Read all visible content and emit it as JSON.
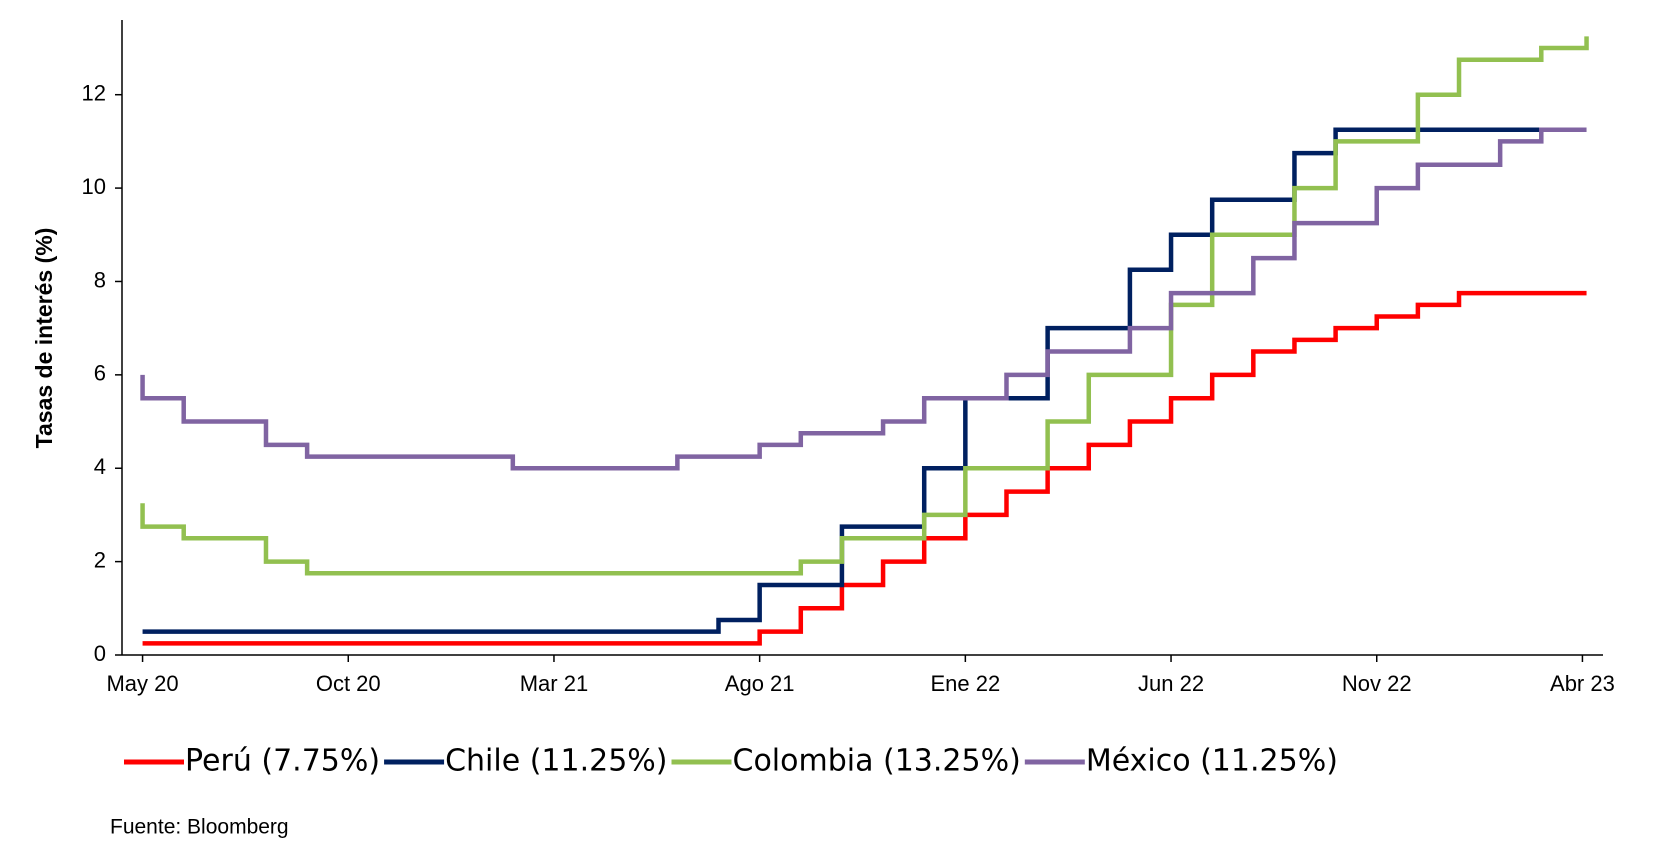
{
  "chart_data": {
    "type": "line",
    "step": true,
    "y_label": "Tasas de interés (%)",
    "source": "Fuente: Bloomberg",
    "xlim": [
      -0.5,
      35.5
    ],
    "xticks": [
      {
        "value": 0,
        "label": "May 20"
      },
      {
        "value": 5,
        "label": "Oct 20"
      },
      {
        "value": 10,
        "label": "Mar 21"
      },
      {
        "value": 15,
        "label": "Ago 21"
      },
      {
        "value": 20,
        "label": "Ene 22"
      },
      {
        "value": 25,
        "label": "Jun 22"
      },
      {
        "value": 30,
        "label": "Nov 22"
      },
      {
        "value": 35,
        "label": "Abr 23"
      }
    ],
    "ylim": [
      0,
      13.6
    ],
    "yticks": [
      0,
      2,
      4,
      6,
      8,
      10,
      12
    ],
    "grid": false,
    "legend": "bottom",
    "series": [
      {
        "name": "Perú (7.75%)",
        "color": "#ff0000",
        "x": [
          0,
          15,
          15,
          16,
          16,
          17,
          17,
          18,
          18,
          19,
          19,
          20,
          20,
          21,
          21,
          22,
          22,
          23,
          23,
          24,
          24,
          25,
          25,
          26,
          26,
          27,
          27,
          28,
          28,
          29,
          29,
          30,
          30,
          31,
          31,
          32,
          32,
          35.1
        ],
        "values": [
          0.25,
          0.25,
          0.5,
          0.5,
          1,
          1,
          1.5,
          1.5,
          2,
          2,
          2.5,
          2.5,
          3,
          3,
          3.5,
          3.5,
          4,
          4,
          4.5,
          4.5,
          5,
          5,
          5.5,
          5.5,
          6,
          6,
          6.5,
          6.5,
          6.75,
          6.75,
          7,
          7,
          7.25,
          7.25,
          7.5,
          7.5,
          7.75,
          7.75
        ]
      },
      {
        "name": "Chile (11.25%)",
        "color": "#002060",
        "x": [
          0,
          14,
          14,
          15,
          15,
          17,
          17,
          19,
          19,
          20,
          20,
          22,
          22,
          24,
          24,
          25,
          25,
          26,
          26,
          28,
          28,
          29,
          29,
          34
        ],
        "values": [
          0.5,
          0.5,
          0.75,
          0.75,
          1.5,
          1.5,
          2.75,
          2.75,
          4,
          4,
          5.5,
          5.5,
          7,
          7,
          8.25,
          8.25,
          9,
          9,
          9.75,
          9.75,
          10.75,
          10.75,
          11.25,
          11.25
        ]
      },
      {
        "name": "Colombia (13.25%)",
        "color": "#92c050",
        "x": [
          0,
          0,
          1,
          1,
          3,
          3,
          4,
          4,
          16,
          16,
          17,
          17,
          19,
          19,
          20,
          20,
          22,
          22,
          23,
          23,
          25,
          25,
          26,
          26,
          28,
          28,
          29,
          29,
          31,
          31,
          32,
          32,
          34,
          34,
          35.1,
          35.1
        ],
        "values": [
          3.25,
          2.75,
          2.75,
          2.5,
          2.5,
          2,
          2,
          1.75,
          1.75,
          2,
          2,
          2.5,
          2.5,
          3,
          3,
          4,
          4,
          5,
          5,
          6,
          6,
          7.5,
          7.5,
          9,
          9,
          10,
          10,
          11,
          11,
          12,
          12,
          12.75,
          12.75,
          13,
          13,
          13.25
        ]
      },
      {
        "name": "México (11.25%)",
        "color": "#8064a2",
        "x": [
          0,
          0,
          1,
          1,
          3,
          3,
          4,
          4,
          9,
          9,
          13,
          13,
          15,
          15,
          16,
          16,
          18,
          18,
          19,
          19,
          21,
          21,
          22,
          22,
          24,
          24,
          25,
          25,
          27,
          27,
          28,
          28,
          30,
          30,
          31,
          31,
          33,
          33,
          34,
          34,
          35.1
        ],
        "values": [
          6,
          5.5,
          5.5,
          5,
          5,
          4.5,
          4.5,
          4.25,
          4.25,
          4,
          4,
          4.25,
          4.25,
          4.5,
          4.5,
          4.75,
          4.75,
          5,
          5,
          5.5,
          5.5,
          6,
          6,
          6.5,
          6.5,
          7,
          7,
          7.75,
          7.75,
          8.5,
          8.5,
          9.25,
          9.25,
          10,
          10,
          10.5,
          10.5,
          11,
          11,
          11.25,
          11.25
        ]
      }
    ]
  }
}
